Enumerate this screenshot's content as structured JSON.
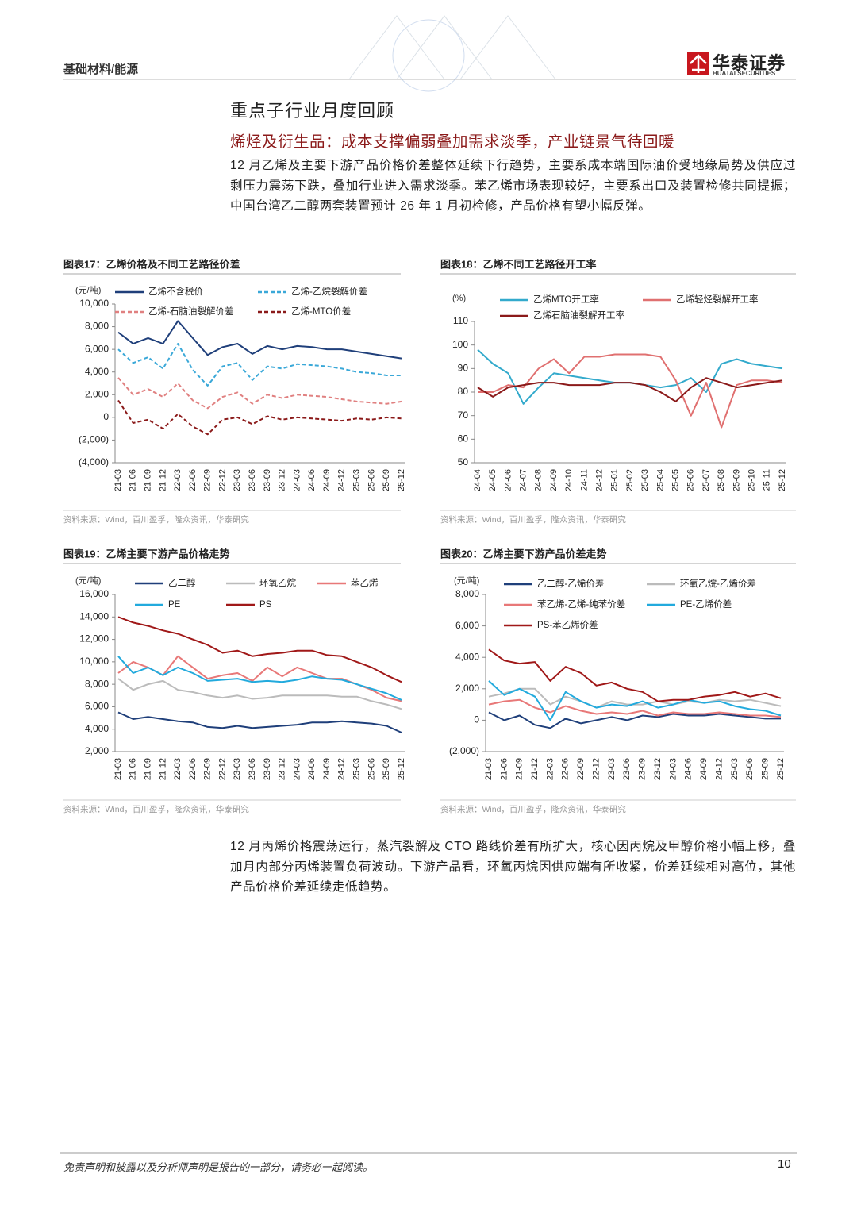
{
  "header": {
    "section": "基础材料/能源",
    "logo_cn": "华泰证券",
    "logo_en": "HUATAI SECURITIES"
  },
  "title": "重点子行业月度回顾",
  "subtitle": "烯烃及衍生品：成本支撑偏弱叠加需求淡季，产业链景气待回暖",
  "paragraphs": [
    "12 月乙烯及主要下游产品价格价差整体延续下行趋势，主要系成本端国际油价受地缘局势及供应过剩压力震荡下跌，叠加行业进入需求淡季。苯乙烯市场表现较好，主要系出口及装置检修共同提振；中国台湾乙二醇两套装置预计 26 年 1 月初检修，产品价格有望小幅反弹。",
    "12 月丙烯价格震荡运行，蒸汽裂解及 CTO 路线价差有所扩大，核心因丙烷及甲醇价格小幅上移，叠加月内部分丙烯装置负荷波动。下游产品看，环氧丙烷因供应端有所收紧，价差延续相对高位，其他产品价格价差延续走低趋势。"
  ],
  "footer": {
    "disclaimer": "免责声明和披露以及分析师声明是报告的一部分，请务必一起阅读。",
    "page": "10"
  },
  "chart_data": [
    {
      "type": "line",
      "title": "图表17：乙烯价格及不同工艺路径价差",
      "ylabel": "(元/吨)",
      "source": "资料来源：Wind，百川盈孚，隆众资讯，华泰研究",
      "categories": [
        "21-03",
        "21-06",
        "21-09",
        "21-12",
        "22-03",
        "22-06",
        "22-09",
        "22-12",
        "23-03",
        "23-06",
        "23-09",
        "23-12",
        "24-03",
        "24-06",
        "24-09",
        "24-12",
        "25-03",
        "25-06",
        "25-09",
        "25-12"
      ],
      "ylim": [
        -4000,
        10000
      ],
      "yticks": [
        {
          "value": -4000,
          "label": "(4,000)"
        },
        {
          "value": -2000,
          "label": "(2,000)"
        },
        0,
        {
          "value": 2000,
          "label": "2,000"
        },
        {
          "value": 4000,
          "label": "4,000"
        },
        {
          "value": 6000,
          "label": "6,000"
        },
        {
          "value": 8000,
          "label": "8,000"
        },
        {
          "value": 10000,
          "label": "10,000"
        }
      ],
      "series": [
        {
          "name": "乙烯不含税价",
          "color": "#1f3f7a",
          "dash": false,
          "values": [
            7500,
            6500,
            7000,
            6500,
            8500,
            7000,
            5500,
            6200,
            6500,
            5600,
            6300,
            6000,
            6300,
            6200,
            6000,
            6000,
            5800,
            5600,
            5400,
            5200
          ]
        },
        {
          "name": "乙烯-乙烷裂解价差",
          "color": "#3aa8d8",
          "dash": true,
          "values": [
            6000,
            4800,
            5300,
            4300,
            6500,
            4200,
            2800,
            4500,
            4800,
            3300,
            4500,
            4300,
            4700,
            4600,
            4500,
            4300,
            4000,
            3900,
            3700,
            3700
          ]
        },
        {
          "name": "乙烯-石脑油裂解价差",
          "color": "#e08080",
          "dash": true,
          "values": [
            3500,
            2000,
            2500,
            1800,
            3000,
            1500,
            800,
            1800,
            2200,
            1200,
            2000,
            1700,
            2000,
            1900,
            1800,
            1600,
            1400,
            1300,
            1200,
            1400
          ]
        },
        {
          "name": "乙烯-MTO价差",
          "color": "#8b1a1a",
          "dash": true,
          "values": [
            1500,
            -500,
            -200,
            -1000,
            300,
            -800,
            -1500,
            -200,
            0,
            -600,
            100,
            -200,
            0,
            -100,
            -200,
            -300,
            -100,
            -200,
            0,
            -100
          ]
        }
      ]
    },
    {
      "type": "line",
      "title": "图表18：乙烯不同工艺路径开工率",
      "ylabel": "(%)",
      "source": "资料来源：Wind，百川盈孚，隆众资讯，华泰研究",
      "categories": [
        "24-04",
        "24-05",
        "24-06",
        "24-07",
        "24-08",
        "24-09",
        "24-10",
        "24-11",
        "24-12",
        "25-01",
        "25-02",
        "25-03",
        "25-04",
        "25-05",
        "25-06",
        "25-07",
        "25-08",
        "25-09",
        "25-10",
        "25-11",
        "25-12"
      ],
      "ylim": [
        50,
        110
      ],
      "yticks": [
        50,
        60,
        70,
        80,
        90,
        100,
        110
      ],
      "series": [
        {
          "name": "乙烯MTO开工率",
          "color": "#33aacc",
          "dash": false,
          "values": [
            98,
            92,
            88,
            75,
            82,
            88,
            87,
            86,
            85,
            84,
            84,
            83,
            82,
            83,
            86,
            80,
            92,
            94,
            92,
            91,
            90
          ]
        },
        {
          "name": "乙烯轻烃裂解开工率",
          "color": "#e07070",
          "dash": false,
          "values": [
            80,
            80,
            83,
            82,
            90,
            94,
            88,
            95,
            95,
            96,
            96,
            96,
            95,
            85,
            70,
            84,
            65,
            83,
            85,
            85,
            84
          ]
        },
        {
          "name": "乙烯石脑油裂解开工率",
          "color": "#8b1a1a",
          "dash": false,
          "values": [
            82,
            78,
            82,
            83,
            84,
            84,
            83,
            83,
            83,
            84,
            84,
            83,
            80,
            76,
            82,
            86,
            84,
            82,
            83,
            84,
            85
          ]
        }
      ]
    },
    {
      "type": "line",
      "title": "图表19：乙烯主要下游产品价格走势",
      "ylabel": "(元/吨)",
      "source": "资料来源：Wind，百川盈孚，隆众资讯，华泰研究",
      "categories": [
        "21-03",
        "21-06",
        "21-09",
        "21-12",
        "22-03",
        "22-06",
        "22-09",
        "22-12",
        "23-03",
        "23-06",
        "23-09",
        "23-12",
        "24-03",
        "24-06",
        "24-09",
        "24-12",
        "25-03",
        "25-06",
        "25-09",
        "25-12"
      ],
      "ylim": [
        2000,
        16000
      ],
      "yticks": [
        {
          "value": 2000,
          "label": "2,000"
        },
        {
          "value": 4000,
          "label": "4,000"
        },
        {
          "value": 6000,
          "label": "6,000"
        },
        {
          "value": 8000,
          "label": "8,000"
        },
        {
          "value": 10000,
          "label": "10,000"
        },
        {
          "value": 12000,
          "label": "12,000"
        },
        {
          "value": 14000,
          "label": "14,000"
        },
        {
          "value": 16000,
          "label": "16,000"
        }
      ],
      "series": [
        {
          "name": "乙二醇",
          "color": "#1f3f7a",
          "dash": false,
          "values": [
            5500,
            4900,
            5100,
            4900,
            4700,
            4600,
            4200,
            4100,
            4300,
            4100,
            4200,
            4300,
            4400,
            4600,
            4600,
            4700,
            4600,
            4500,
            4300,
            3700
          ]
        },
        {
          "name": "环氧乙烷",
          "color": "#bbbbbb",
          "dash": false,
          "values": [
            8500,
            7500,
            8000,
            8300,
            7500,
            7300,
            7000,
            6800,
            7000,
            6700,
            6800,
            7000,
            7000,
            7000,
            7000,
            6900,
            6900,
            6500,
            6200,
            5800
          ]
        },
        {
          "name": "苯乙烯",
          "color": "#e87878",
          "dash": false,
          "values": [
            9000,
            10000,
            9500,
            8800,
            10500,
            9500,
            8500,
            8800,
            9000,
            8300,
            9500,
            8700,
            9500,
            9000,
            8500,
            8500,
            8000,
            7500,
            6800,
            6500
          ]
        },
        {
          "name": "PE",
          "color": "#22aadd",
          "dash": false,
          "values": [
            10500,
            9000,
            9500,
            8800,
            9500,
            9000,
            8300,
            8400,
            8500,
            8200,
            8300,
            8200,
            8400,
            8700,
            8500,
            8400,
            8000,
            7600,
            7200,
            6600
          ]
        },
        {
          "name": "PS",
          "color": "#a01818",
          "dash": false,
          "values": [
            14000,
            13500,
            13200,
            12800,
            12500,
            12000,
            11500,
            10800,
            11000,
            10500,
            10700,
            10800,
            11000,
            11000,
            10600,
            10500,
            10000,
            9500,
            8800,
            8200
          ]
        }
      ]
    },
    {
      "type": "line",
      "title": "图表20：乙烯主要下游产品价差走势",
      "ylabel": "(元/吨)",
      "source": "资料来源：Wind，百川盈孚，隆众资讯，华泰研究",
      "categories": [
        "21-03",
        "21-06",
        "21-09",
        "21-12",
        "22-03",
        "22-06",
        "22-09",
        "22-12",
        "23-03",
        "23-06",
        "23-09",
        "23-12",
        "24-03",
        "24-06",
        "24-09",
        "24-12",
        "25-03",
        "25-06",
        "25-09",
        "25-12"
      ],
      "ylim": [
        -2000,
        8000
      ],
      "yticks": [
        {
          "value": -2000,
          "label": "(2,000)"
        },
        0,
        {
          "value": 2000,
          "label": "2,000"
        },
        {
          "value": 4000,
          "label": "4,000"
        },
        {
          "value": 6000,
          "label": "6,000"
        },
        {
          "value": 8000,
          "label": "8,000"
        }
      ],
      "series": [
        {
          "name": "乙二醇-乙烯价差",
          "color": "#1f3f7a",
          "dash": false,
          "values": [
            500,
            0,
            300,
            -300,
            -500,
            100,
            -200,
            0,
            200,
            0,
            300,
            200,
            400,
            300,
            300,
            400,
            300,
            200,
            100,
            100
          ]
        },
        {
          "name": "环氧乙烷-乙烯价差",
          "color": "#bbbbbb",
          "dash": false,
          "values": [
            1500,
            1700,
            2000,
            2000,
            1000,
            1500,
            1200,
            800,
            1200,
            1000,
            1000,
            1200,
            1000,
            1200,
            1100,
            1300,
            1200,
            1300,
            1100,
            900
          ]
        },
        {
          "name": "苯乙烯-乙烯-纯苯价差",
          "color": "#e87878",
          "dash": false,
          "values": [
            1000,
            1200,
            1300,
            800,
            500,
            900,
            600,
            400,
            500,
            400,
            600,
            300,
            500,
            400,
            400,
            500,
            400,
            300,
            300,
            200
          ]
        },
        {
          "name": "PE-乙烯价差",
          "color": "#22aadd",
          "dash": false,
          "values": [
            2500,
            1600,
            2000,
            1500,
            0,
            1800,
            1200,
            800,
            1000,
            900,
            1200,
            800,
            1000,
            1300,
            1100,
            1200,
            900,
            700,
            600,
            300
          ]
        },
        {
          "name": "PS-苯乙烯价差",
          "color": "#a01818",
          "dash": false,
          "values": [
            4500,
            3800,
            3600,
            3700,
            2500,
            3400,
            3000,
            2200,
            2400,
            2000,
            1800,
            1200,
            1300,
            1300,
            1500,
            1600,
            1800,
            1500,
            1700,
            1400
          ]
        }
      ]
    }
  ]
}
